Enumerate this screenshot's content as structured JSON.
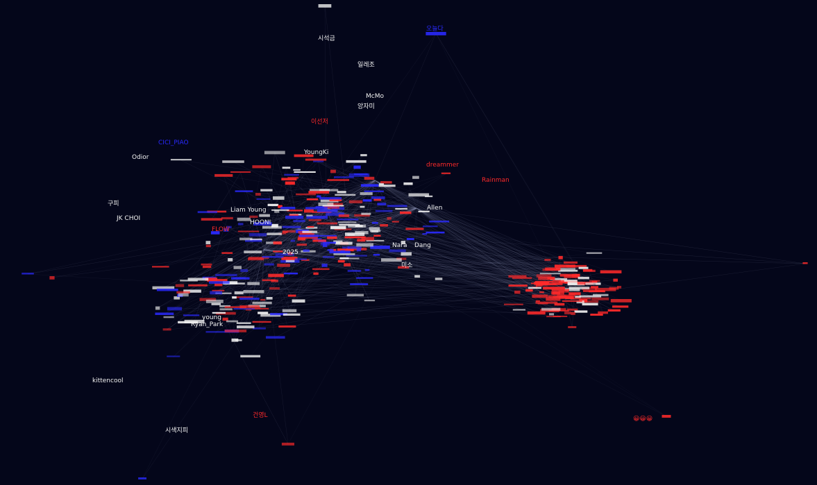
{
  "graph": {
    "colors": {
      "background": "#04061a",
      "edge": "#8a8fb0",
      "white": "#f2f2f2",
      "red": "#ff2a2a",
      "blue": "#2a2aff"
    },
    "labels": [
      {
        "text": "시석금",
        "color": "white"
      },
      {
        "text": "일레조",
        "color": "white"
      },
      {
        "text": "McMo",
        "color": "white"
      },
      {
        "text": "앙자미",
        "color": "white"
      },
      {
        "text": "YoungKi",
        "color": "white"
      },
      {
        "text": "구피",
        "color": "white"
      },
      {
        "text": "JK CHOI",
        "color": "white"
      },
      {
        "text": "Liam Young",
        "color": "white"
      },
      {
        "text": "Nara",
        "color": "white"
      },
      {
        "text": "Dang",
        "color": "white"
      },
      {
        "text": "Allen",
        "color": "white"
      },
      {
        "text": "Ryan_Park",
        "color": "white"
      },
      {
        "text": "young",
        "color": "white"
      },
      {
        "text": "kittencool",
        "color": "white"
      },
      {
        "text": "시색지피",
        "color": "white"
      },
      {
        "text": "Odior",
        "color": "white"
      },
      {
        "text": "이선저",
        "color": "red"
      },
      {
        "text": "FLOW",
        "color": "red"
      },
      {
        "text": "건영L",
        "color": "red"
      },
      {
        "text": "😀😀😀",
        "color": "red"
      },
      {
        "text": "Rainman",
        "color": "red"
      },
      {
        "text": "dreammer",
        "color": "red"
      },
      {
        "text": "미소",
        "color": "white"
      },
      {
        "text": "오늘다",
        "color": "blue"
      },
      {
        "text": "CICI_PIAO",
        "color": "blue"
      },
      {
        "text": "2025",
        "color": "white"
      },
      {
        "text": "HOONI",
        "color": "white"
      }
    ]
  }
}
